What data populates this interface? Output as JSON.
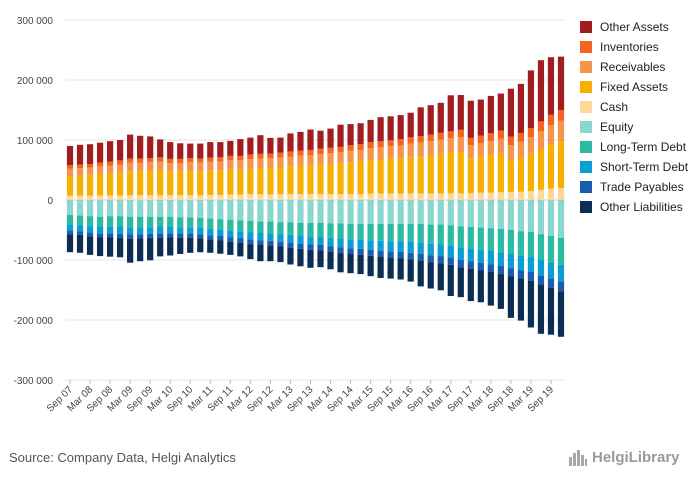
{
  "chart_data": {
    "type": "bar",
    "stacked": true,
    "title": "",
    "xlabel": "",
    "ylabel": "",
    "ylim": [
      -300000,
      300000
    ],
    "yticks": [
      300000,
      200000,
      100000,
      0,
      -100000,
      -200000,
      -300000
    ],
    "ytick_labels": [
      "300 000",
      "200 000",
      "100 000",
      "0",
      "-100 000",
      "-200 000",
      "-300 000"
    ],
    "grid": true,
    "legend_position": "right",
    "categories": [
      "Sep 07",
      "Dec 07",
      "Mar 08",
      "Jun 08",
      "Sep 08",
      "Dec 08",
      "Mar 09",
      "Jun 09",
      "Sep 09",
      "Dec 09",
      "Mar 10",
      "Jun 10",
      "Sep 10",
      "Dec 10",
      "Mar 11",
      "Jun 11",
      "Sep 11",
      "Dec 11",
      "Mar 12",
      "Jun 12",
      "Sep 12",
      "Dec 12",
      "Mar 13",
      "Jun 13",
      "Sep 13",
      "Dec 13",
      "Mar 14",
      "Jun 14",
      "Sep 14",
      "Dec 14",
      "Mar 15",
      "Jun 15",
      "Sep 15",
      "Dec 15",
      "Mar 16",
      "Jun 16",
      "Sep 16",
      "Dec 16",
      "Mar 17",
      "Jun 17",
      "Sep 17",
      "Dec 17",
      "Mar 18",
      "Jun 18",
      "Sep 18",
      "Dec 18",
      "Mar 19",
      "Jun 19",
      "Sep 19",
      "Dec 19"
    ],
    "xtick_labels": [
      "Sep 07",
      "Mar 08",
      "Sep 08",
      "Mar 09",
      "Sep 09",
      "Mar 10",
      "Sep 10",
      "Mar 11",
      "Sep 11",
      "Mar 12",
      "Sep 12",
      "Mar 13",
      "Sep 13",
      "Mar 14",
      "Sep 14",
      "Mar 15",
      "Sep 15",
      "Mar 16",
      "Sep 16",
      "Mar 17",
      "Sep 17",
      "Mar 18",
      "Sep 18",
      "Mar 19",
      "Sep 19"
    ],
    "assets": [
      {
        "name": "Cash",
        "color": "#FDD898",
        "values": [
          7000,
          7000,
          7000,
          7500,
          7500,
          7500,
          8000,
          8000,
          8000,
          8000,
          8000,
          8000,
          8000,
          8000,
          8500,
          8500,
          9000,
          9000,
          9500,
          9500,
          9500,
          10000,
          10000,
          10000,
          10000,
          10000,
          10000,
          10000,
          10000,
          10000,
          10500,
          10500,
          10500,
          10500,
          11000,
          11000,
          11000,
          11000,
          11000,
          11000,
          11500,
          12000,
          12500,
          13000,
          13500,
          14000,
          15000,
          17000,
          19000,
          20000
        ]
      },
      {
        "name": "Fixed Assets",
        "color": "#F6B000",
        "values": [
          33000,
          34000,
          35000,
          36000,
          37000,
          38000,
          40000,
          40000,
          41000,
          42000,
          40000,
          40000,
          41000,
          40000,
          41000,
          41000,
          42000,
          42000,
          43000,
          44000,
          44000,
          45000,
          46000,
          47000,
          48000,
          49000,
          50000,
          51000,
          53000,
          54000,
          56000,
          57000,
          58000,
          59000,
          61000,
          62000,
          64000,
          66000,
          68000,
          69000,
          58000,
          60000,
          62000,
          64000,
          52000,
          56000,
          62000,
          68000,
          74000,
          78000
        ]
      },
      {
        "name": "Receivables",
        "color": "#F5954C",
        "values": [
          12000,
          12000,
          12000,
          12500,
          13000,
          13500,
          14000,
          14000,
          14000,
          14000,
          13500,
          13500,
          14000,
          14000,
          14000,
          14500,
          15000,
          15000,
          15500,
          15500,
          16000,
          16000,
          16500,
          17000,
          17000,
          17500,
          18000,
          18500,
          19000,
          19500,
          20000,
          20500,
          21000,
          21500,
          22000,
          22500,
          23000,
          23500,
          24000,
          25000,
          22000,
          23000,
          24000,
          25000,
          26000,
          27000,
          28000,
          30000,
          32000,
          34000
        ]
      },
      {
        "name": "Inventories",
        "color": "#F4641E",
        "values": [
          6000,
          6000,
          6000,
          6500,
          6500,
          7000,
          7000,
          7000,
          7000,
          7000,
          7000,
          7000,
          7000,
          7000,
          7000,
          7500,
          7500,
          7500,
          8000,
          8000,
          8000,
          8000,
          8500,
          8500,
          8500,
          9000,
          9000,
          9000,
          9500,
          9500,
          10000,
          10000,
          10000,
          10500,
          10500,
          11000,
          11000,
          11500,
          11500,
          12000,
          12000,
          12500,
          13000,
          13500,
          14000,
          14500,
          15000,
          16000,
          17000,
          18000
        ]
      },
      {
        "name": "Other Assets",
        "color": "#A21D20",
        "values": [
          32000,
          33000,
          33000,
          33000,
          34000,
          34000,
          40000,
          38000,
          36000,
          30000,
          28000,
          26000,
          24000,
          25000,
          26000,
          25000,
          25000,
          28000,
          28000,
          31000,
          26000,
          25000,
          30000,
          31000,
          34000,
          30000,
          32000,
          37000,
          35000,
          35000,
          37000,
          40000,
          40000,
          40000,
          41000,
          48000,
          49000,
          50000,
          60000,
          58000,
          62000,
          60000,
          62000,
          62000,
          80000,
          82000,
          96000,
          102000,
          96000,
          89000
        ]
      }
    ],
    "liabilities": [
      {
        "name": "Equity",
        "color": "#8AD7CF",
        "values": [
          -25000,
          -26000,
          -27000,
          -28000,
          -27000,
          -27000,
          -28000,
          -28000,
          -28000,
          -28000,
          -28000,
          -29000,
          -29000,
          -30000,
          -31000,
          -32000,
          -33000,
          -34000,
          -35000,
          -36000,
          -36000,
          -37000,
          -37000,
          -38000,
          -38000,
          -38000,
          -39000,
          -39000,
          -40000,
          -40000,
          -40000,
          -40000,
          -40000,
          -40000,
          -40000,
          -40000,
          -41000,
          -41000,
          -42000,
          -44000,
          -45000,
          -46000,
          -47000,
          -48000,
          -50000,
          -52000,
          -53000,
          -57000,
          -60000,
          -63000
        ]
      },
      {
        "name": "Long-Term Debt",
        "color": "#2BBAA2",
        "values": [
          -16000,
          -16000,
          -16500,
          -17000,
          -17500,
          -18000,
          -18000,
          -18000,
          -17500,
          -17000,
          -17000,
          -16500,
          -16500,
          -16500,
          -17000,
          -17000,
          -17500,
          -18000,
          -18500,
          -19000,
          -19500,
          -20000,
          -21000,
          -22000,
          -22500,
          -23000,
          -24000,
          -25000,
          -25500,
          -26000,
          -27000,
          -28000,
          -28500,
          -29000,
          -30000,
          -31000,
          -32000,
          -33000,
          -34000,
          -35000,
          -36000,
          -37000,
          -38000,
          -39000,
          -40000,
          -41000,
          -42000,
          -43000,
          -44000,
          -45000
        ]
      },
      {
        "name": "Short-Term Debt",
        "color": "#0A9FD4",
        "values": [
          -10000,
          -10000,
          -10500,
          -11000,
          -11000,
          -11500,
          -11500,
          -11000,
          -11000,
          -11000,
          -10500,
          -10500,
          -10500,
          -10500,
          -11000,
          -11000,
          -11500,
          -11500,
          -12000,
          -12000,
          -12500,
          -12500,
          -13000,
          -13000,
          -13500,
          -14000,
          -14500,
          -15000,
          -15000,
          -15500,
          -16000,
          -16500,
          -17000,
          -17500,
          -18000,
          -18500,
          -19000,
          -19500,
          -20000,
          -20500,
          -21000,
          -21500,
          -22000,
          -23000,
          -23500,
          -24000,
          -25000,
          -26000,
          -27000,
          -28000
        ]
      },
      {
        "name": "Trade Payables",
        "color": "#1A5DAE",
        "values": [
          -6000,
          -6000,
          -6500,
          -6500,
          -7000,
          -7000,
          -7000,
          -7000,
          -7000,
          -7000,
          -7000,
          -7000,
          -7000,
          -7000,
          -7000,
          -7500,
          -7500,
          -7500,
          -8000,
          -8000,
          -8000,
          -8000,
          -8500,
          -8500,
          -9000,
          -9000,
          -9000,
          -9500,
          -9500,
          -10000,
          -10000,
          -10500,
          -10500,
          -11000,
          -11000,
          -11500,
          -11500,
          -12000,
          -12000,
          -12500,
          -12500,
          -13000,
          -13000,
          -13500,
          -14000,
          -14000,
          -14500,
          -15000,
          -15500,
          -16000
        ]
      },
      {
        "name": "Other Liabilities",
        "color": "#0C2D54",
        "values": [
          -30000,
          -30000,
          -31000,
          -31000,
          -32000,
          -32000,
          -40000,
          -38000,
          -37000,
          -31000,
          -30000,
          -27000,
          -25000,
          -23000,
          -22000,
          -22000,
          -22000,
          -23000,
          -25000,
          -27000,
          -26000,
          -26000,
          -28000,
          -29000,
          -30000,
          -28000,
          -29000,
          -32000,
          -32000,
          -32000,
          -34000,
          -35000,
          -35000,
          -35000,
          -37000,
          -43000,
          -44000,
          -45000,
          -52000,
          -50000,
          -54000,
          -53000,
          -56000,
          -58000,
          -69000,
          -70000,
          -78000,
          -82000,
          -78000,
          -76000
        ]
      }
    ]
  },
  "legend": {
    "items": [
      {
        "label": "Other Assets",
        "color": "#A21D20"
      },
      {
        "label": "Inventories",
        "color": "#F4641E"
      },
      {
        "label": "Receivables",
        "color": "#F5954C"
      },
      {
        "label": "Fixed Assets",
        "color": "#F6B000"
      },
      {
        "label": "Cash",
        "color": "#FDD898"
      },
      {
        "label": "Equity",
        "color": "#8AD7CF"
      },
      {
        "label": "Long-Term Debt",
        "color": "#2BBAA2"
      },
      {
        "label": "Short-Term Debt",
        "color": "#0A9FD4"
      },
      {
        "label": "Trade Payables",
        "color": "#1A5DAE"
      },
      {
        "label": "Other Liabilities",
        "color": "#0C2D54"
      }
    ]
  },
  "footer": {
    "source": "Source: Company Data, Helgi Analytics",
    "brand": "HelgiLibrary",
    "brand_icon": "city-skyline-icon"
  }
}
